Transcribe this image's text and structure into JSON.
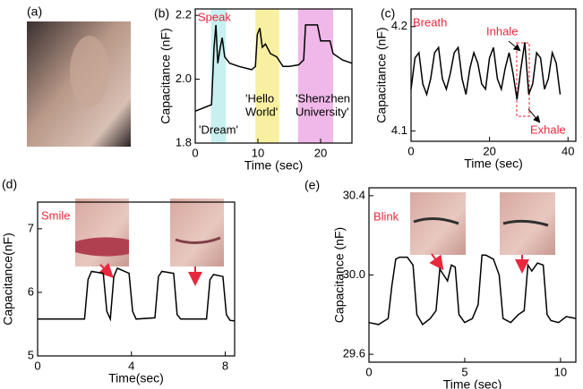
{
  "image_panel": {
    "label": "(a)"
  },
  "chart_data": [
    {
      "type": "line",
      "panel": "(b)",
      "xlabel": "Time (sec)",
      "ylabel": "Capacitance (nF)",
      "xlim": [
        0,
        25
      ],
      "xticks": [
        0,
        10,
        20
      ],
      "ylim": [
        1.8,
        2.22
      ],
      "yticks": [
        {
          "value": 1.8,
          "label": "1.8"
        },
        {
          "value": 2.0,
          "label": "2.0"
        },
        {
          "value": 2.2,
          "label": "2.2"
        }
      ],
      "spans": [
        {
          "x0": 2.5,
          "x1": 4.9,
          "color": "#c8f0f0"
        },
        {
          "x0": 9.6,
          "x1": 13.4,
          "color": "#f8f0a0"
        },
        {
          "x0": 16.4,
          "x1": 22,
          "color": "#f0b8e8"
        }
      ],
      "annotations": [
        {
          "text": [
            "Speak"
          ],
          "color": "#e8283c"
        },
        {
          "text": [
            "'Dream'"
          ],
          "color": "#000000"
        },
        {
          "text": [
            "'Hello",
            "World'"
          ],
          "color": "#000000"
        },
        {
          "text": [
            "'Shenzhen",
            "University'"
          ],
          "color": "#000000"
        }
      ],
      "series": [
        {
          "color": "#000000",
          "x": [
            0,
            2.6,
            3.0,
            3.3,
            3.6,
            4.0,
            4.3,
            4.7,
            5.5,
            7,
            9,
            9.6,
            9.9,
            10.3,
            10.7,
            11.2,
            12,
            13,
            14,
            15,
            16.5,
            17.3,
            17.6,
            19.5,
            20,
            21.5,
            22,
            23.5,
            25
          ],
          "values": [
            1.9,
            1.92,
            2.1,
            2.17,
            2.05,
            2.1,
            2.13,
            2.07,
            2.05,
            2.04,
            2.03,
            2.04,
            2.14,
            2.16,
            2.1,
            2.11,
            2.08,
            2.07,
            2.04,
            2.04,
            2.045,
            2.06,
            2.17,
            2.17,
            2.12,
            2.12,
            2.08,
            2.06,
            2.05
          ]
        }
      ]
    },
    {
      "type": "line",
      "panel": "(c)",
      "xlabel": "Time (sec)",
      "ylabel": "Capacitance (nF)",
      "xlim": [
        0,
        42
      ],
      "xticks": [
        0,
        20,
        40
      ],
      "ylim": [
        4.09,
        4.217
      ],
      "yticks": [
        {
          "value": 4.1,
          "label": "4.1"
        },
        {
          "value": 4.2,
          "label": "4.2"
        }
      ],
      "annotations": [
        {
          "text": [
            "Breath"
          ],
          "color": "#e8283c"
        },
        {
          "text": [
            "Inhale"
          ],
          "color": "#e8283c"
        },
        {
          "text": [
            "Exhale"
          ],
          "color": "#e8283c"
        }
      ],
      "series": [
        {
          "color": "#000000",
          "x": [
            0,
            1,
            2,
            3,
            4,
            5,
            6,
            7,
            8,
            9,
            10,
            11,
            12,
            13,
            14,
            15,
            16,
            17,
            18,
            19,
            20,
            21,
            22,
            23,
            24,
            25,
            26,
            27,
            28,
            29,
            30,
            31,
            32,
            33,
            34,
            35,
            36,
            37,
            38
          ],
          "values": [
            4.14,
            4.17,
            4.175,
            4.145,
            4.135,
            4.15,
            4.175,
            4.18,
            4.15,
            4.14,
            4.155,
            4.175,
            4.18,
            4.15,
            4.135,
            4.16,
            4.175,
            4.165,
            4.145,
            4.14,
            4.17,
            4.18,
            4.15,
            4.14,
            4.16,
            4.175,
            4.155,
            4.13,
            4.16,
            4.185,
            4.135,
            4.145,
            4.175,
            4.17,
            4.14,
            4.15,
            4.175,
            4.165,
            4.135
          ]
        }
      ]
    },
    {
      "type": "line",
      "panel": "(d)",
      "xlabel": "Time(sec)",
      "ylabel": "Capacitance(nF)",
      "xlim": [
        0,
        8.4
      ],
      "xticks": [
        0,
        4,
        8
      ],
      "ylim": [
        5,
        7.42
      ],
      "yticks": [
        5,
        6,
        7
      ],
      "annotations": [
        {
          "text": [
            "Smile"
          ],
          "color": "#e8283c"
        }
      ],
      "series": [
        {
          "color": "#000000",
          "x": [
            0,
            2.0,
            2.15,
            2.3,
            2.8,
            2.95,
            3.1,
            3.25,
            3.4,
            3.9,
            4.05,
            4.2,
            5.0,
            5.15,
            5.3,
            5.8,
            5.95,
            6.1,
            7.2,
            7.35,
            7.5,
            7.9,
            8.05,
            8.2,
            8.4
          ],
          "values": [
            5.58,
            5.58,
            6.2,
            6.33,
            6.3,
            5.7,
            5.58,
            6.25,
            6.38,
            6.3,
            5.7,
            5.58,
            5.6,
            6.25,
            6.33,
            6.3,
            5.65,
            5.58,
            5.58,
            6.2,
            6.28,
            6.25,
            5.65,
            5.56,
            5.55
          ]
        }
      ]
    },
    {
      "type": "line",
      "panel": "(e)",
      "xlabel": "Time (sec)",
      "ylabel": "Capacitance (nF)",
      "xlim": [
        0,
        10.8
      ],
      "xticks": [
        0,
        5,
        10
      ],
      "ylim": [
        29.56,
        30.44
      ],
      "yticks": [
        {
          "value": 29.6,
          "label": "29.6"
        },
        {
          "value": 30.0,
          "label": "30.0"
        },
        {
          "value": 30.4,
          "label": "30.4"
        }
      ],
      "annotations": [
        {
          "text": [
            "Blink"
          ],
          "color": "#e8283c"
        }
      ],
      "series": [
        {
          "color": "#000000",
          "x": [
            0,
            0.5,
            1.0,
            1.2,
            1.4,
            1.6,
            2.0,
            2.3,
            2.5,
            2.8,
            3.2,
            3.5,
            3.7,
            3.9,
            4.1,
            4.3,
            4.5,
            4.7,
            5.0,
            5.4,
            5.7,
            5.9,
            6.1,
            6.5,
            6.8,
            7.0,
            7.4,
            7.8,
            8.1,
            8.3,
            8.5,
            8.8,
            9.1,
            9.3,
            9.5,
            9.9,
            10.3,
            10.8
          ],
          "values": [
            29.76,
            29.75,
            29.78,
            29.95,
            30.08,
            30.09,
            30.09,
            30.05,
            29.8,
            29.75,
            29.78,
            29.82,
            30.03,
            30.0,
            29.97,
            30.05,
            30.04,
            29.8,
            29.76,
            29.78,
            29.85,
            30.1,
            30.1,
            30.08,
            30.0,
            29.78,
            29.76,
            29.8,
            29.82,
            30.05,
            30.02,
            30.06,
            30.05,
            29.8,
            29.77,
            29.76,
            29.79,
            29.78
          ]
        }
      ]
    }
  ]
}
